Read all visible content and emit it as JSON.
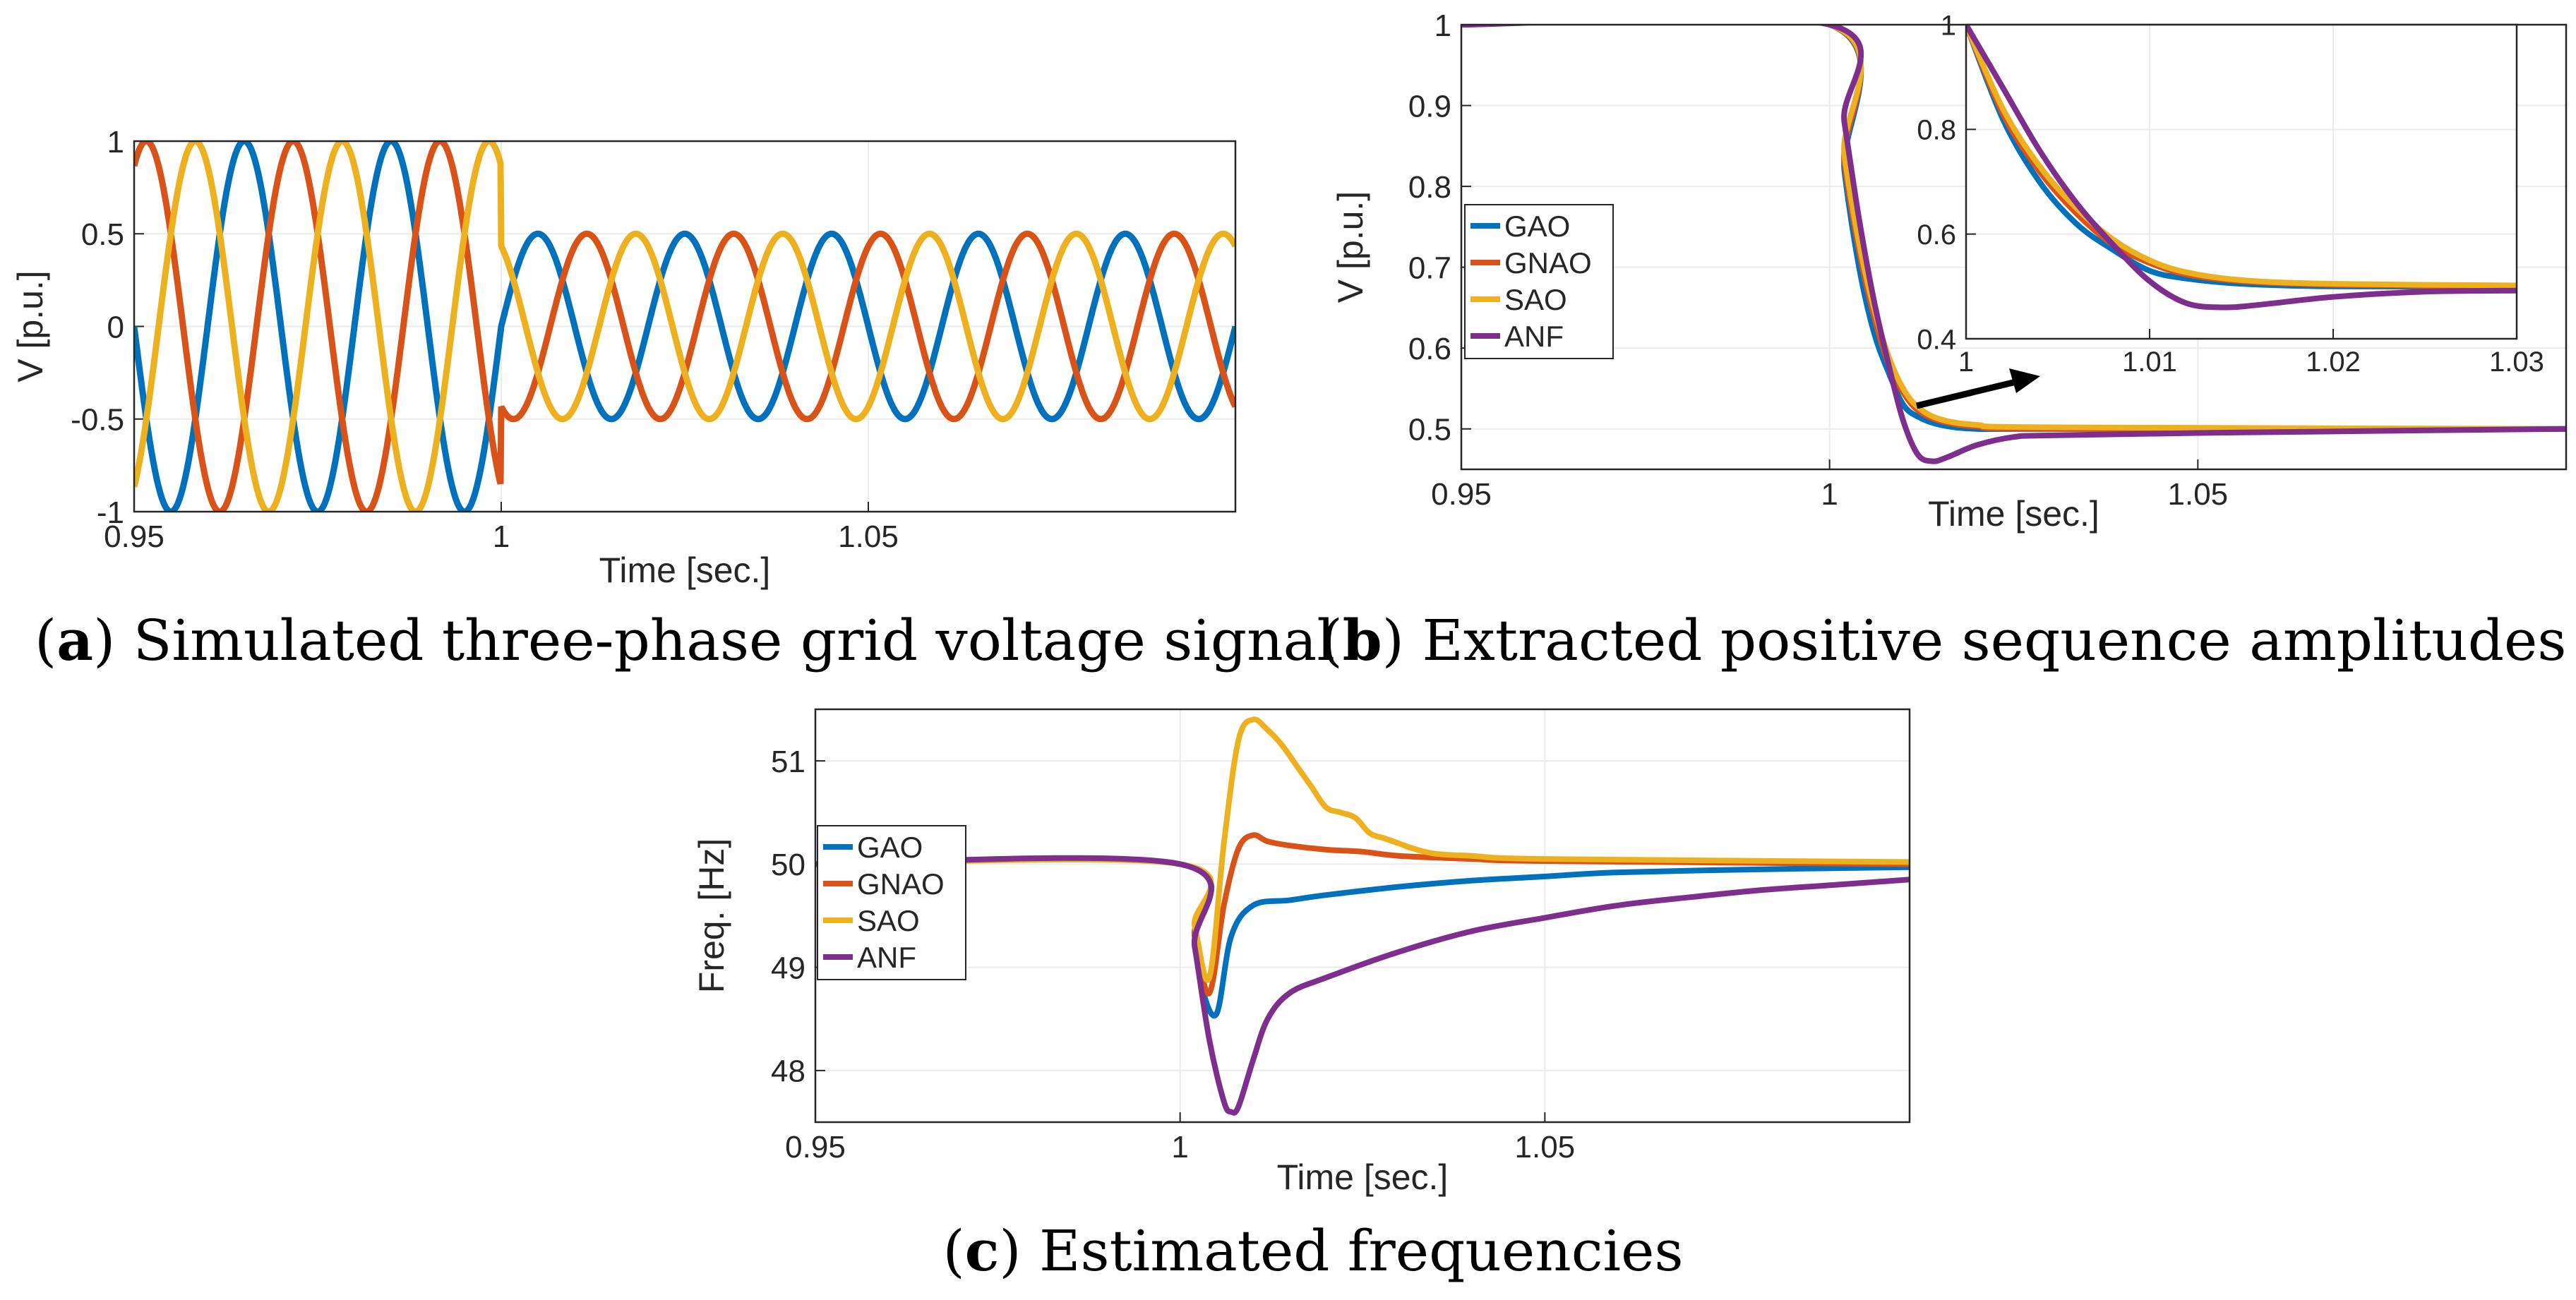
{
  "colors": {
    "GAO": "#0072BD",
    "GNAO": "#D95319",
    "SAO": "#EDB120",
    "ANF": "#7E2F8E",
    "axis": "#262626",
    "grid": "#ebebeb"
  },
  "chart_data": [
    {
      "id": "a",
      "type": "line",
      "title": "",
      "caption_letter": "a",
      "caption_text": "Simulated three-phase grid voltage signal",
      "xlabel": "Time [sec.]",
      "ylabel": "V [p.u.]",
      "xlim": [
        0.95,
        1.1
      ],
      "ylim": [
        -1,
        1
      ],
      "xticks": [
        0.95,
        1,
        1.05
      ],
      "xtick_labels": [
        "0.95",
        "1",
        "1.05"
      ],
      "yticks": [
        -1,
        -0.5,
        0,
        0.5,
        1
      ],
      "ytick_labels": [
        "-1",
        "-0.5",
        "0",
        "0.5",
        "1"
      ],
      "grid": true,
      "legend": null,
      "signal": {
        "frequency_hz": 50,
        "amplitude_before": 1.0,
        "amplitude_after": 0.5,
        "fault_time": 1.0,
        "phase_shift_deg": [
          0,
          -120,
          120
        ],
        "phase_colors": [
          "#0072BD",
          "#D95319",
          "#EDB120"
        ]
      }
    },
    {
      "id": "b",
      "type": "line",
      "title": "",
      "caption_letter": "b",
      "caption_text": "Extracted positive sequence amplitudes",
      "xlabel": "Time [sec.]",
      "ylabel": "V [p.u.]",
      "xlim": [
        0.95,
        1.1
      ],
      "ylim": [
        0.45,
        1.0
      ],
      "xticks": [
        0.95,
        1,
        1.05
      ],
      "xtick_labels": [
        "0.95",
        "1",
        "1.05"
      ],
      "yticks": [
        0.5,
        0.6,
        0.7,
        0.8,
        0.9,
        1
      ],
      "ytick_labels": [
        "0.5",
        "0.6",
        "0.7",
        "0.8",
        "0.9",
        "1"
      ],
      "grid": true,
      "legend": "upper-left",
      "series": [
        {
          "name": "GAO",
          "color": "#0072BD",
          "x": [
            0.95,
            1.0,
            1.002,
            1.004,
            1.006,
            1.008,
            1.01,
            1.012,
            1.015,
            1.02,
            1.03,
            1.1
          ],
          "y": [
            1,
            1,
            0.82,
            0.7,
            0.62,
            0.57,
            0.53,
            0.515,
            0.505,
            0.5,
            0.5,
            0.5
          ]
        },
        {
          "name": "GNAO",
          "color": "#D95319",
          "x": [
            0.95,
            1.0,
            1.002,
            1.004,
            1.006,
            1.008,
            1.01,
            1.012,
            1.015,
            1.02,
            1.03,
            1.1
          ],
          "y": [
            1,
            1,
            0.83,
            0.72,
            0.64,
            0.58,
            0.545,
            0.523,
            0.51,
            0.503,
            0.5,
            0.5
          ]
        },
        {
          "name": "SAO",
          "color": "#EDB120",
          "x": [
            0.95,
            1.0,
            1.002,
            1.004,
            1.006,
            1.008,
            1.01,
            1.012,
            1.015,
            1.02,
            1.03,
            1.1
          ],
          "y": [
            1,
            1,
            0.84,
            0.73,
            0.65,
            0.59,
            0.55,
            0.527,
            0.512,
            0.505,
            0.502,
            0.5
          ]
        },
        {
          "name": "ANF",
          "color": "#7E2F8E",
          "x": [
            0.95,
            1.0,
            1.002,
            1.004,
            1.006,
            1.008,
            1.01,
            1.012,
            1.014,
            1.016,
            1.02,
            1.025,
            1.03,
            1.05,
            1.1
          ],
          "y": [
            1,
            1,
            0.88,
            0.76,
            0.66,
            0.58,
            0.51,
            0.468,
            0.46,
            0.465,
            0.48,
            0.49,
            0.492,
            0.495,
            0.5
          ]
        }
      ],
      "inset": {
        "xlim": [
          1.0,
          1.03
        ],
        "ylim": [
          0.4,
          1.0
        ],
        "xticks": [
          1,
          1.01,
          1.02,
          1.03
        ],
        "xtick_labels": [
          "1",
          "1.01",
          "1.02",
          "1.03"
        ],
        "yticks": [
          0.4,
          0.6,
          0.8,
          1
        ],
        "ytick_labels": [
          "0.4",
          "0.6",
          "0.8",
          "1"
        ],
        "grid": true
      }
    },
    {
      "id": "c",
      "type": "line",
      "title": "",
      "caption_letter": "c",
      "caption_text": "Estimated frequencies",
      "xlabel": "Time [sec.]",
      "ylabel": "Freq. [Hz]",
      "xlim": [
        0.95,
        1.1
      ],
      "ylim": [
        47.5,
        51.5
      ],
      "xticks": [
        0.95,
        1,
        1.05
      ],
      "xtick_labels": [
        "0.95",
        "1",
        "1.05"
      ],
      "yticks": [
        48,
        49,
        50,
        51
      ],
      "ytick_labels": [
        "48",
        "49",
        "50",
        "51"
      ],
      "grid": true,
      "legend": "middle-left",
      "series": [
        {
          "name": "GAO",
          "color": "#0072BD",
          "x": [
            0.95,
            1.0,
            1.002,
            1.003,
            1.005,
            1.007,
            1.01,
            1.015,
            1.02,
            1.03,
            1.04,
            1.05,
            1.06,
            1.08,
            1.1
          ],
          "y": [
            50,
            50,
            49.3,
            48.8,
            48.55,
            49.3,
            49.6,
            49.65,
            49.7,
            49.78,
            49.84,
            49.88,
            49.92,
            49.95,
            49.97
          ]
        },
        {
          "name": "GNAO",
          "color": "#D95319",
          "x": [
            0.95,
            1.0,
            1.002,
            1.004,
            1.006,
            1.008,
            1.01,
            1.012,
            1.015,
            1.02,
            1.025,
            1.03,
            1.04,
            1.05,
            1.1
          ],
          "y": [
            50,
            50,
            49.3,
            48.75,
            49.6,
            50.15,
            50.28,
            50.22,
            50.18,
            50.14,
            50.12,
            50.08,
            50.05,
            50.03,
            50.0
          ]
        },
        {
          "name": "SAO",
          "color": "#EDB120",
          "x": [
            0.95,
            1.0,
            1.002,
            1.004,
            1.006,
            1.008,
            1.01,
            1.012,
            1.014,
            1.016,
            1.018,
            1.02,
            1.022,
            1.024,
            1.026,
            1.028,
            1.03,
            1.032,
            1.035,
            1.04,
            1.05,
            1.1
          ],
          "y": [
            50,
            50,
            49.4,
            48.9,
            50.2,
            51.2,
            51.4,
            51.3,
            51.15,
            50.95,
            50.75,
            50.55,
            50.5,
            50.45,
            50.3,
            50.25,
            50.2,
            50.15,
            50.1,
            50.08,
            50.05,
            50.02
          ]
        },
        {
          "name": "ANF",
          "color": "#7E2F8E",
          "x": [
            0.95,
            1.0,
            1.002,
            1.004,
            1.006,
            1.007,
            1.008,
            1.01,
            1.012,
            1.015,
            1.02,
            1.03,
            1.04,
            1.05,
            1.06,
            1.07,
            1.08,
            1.09,
            1.1
          ],
          "y": [
            50,
            50,
            49.2,
            48.3,
            47.7,
            47.6,
            47.65,
            48.1,
            48.5,
            48.75,
            48.9,
            49.15,
            49.35,
            49.48,
            49.6,
            49.68,
            49.75,
            49.8,
            49.85
          ]
        }
      ]
    }
  ]
}
